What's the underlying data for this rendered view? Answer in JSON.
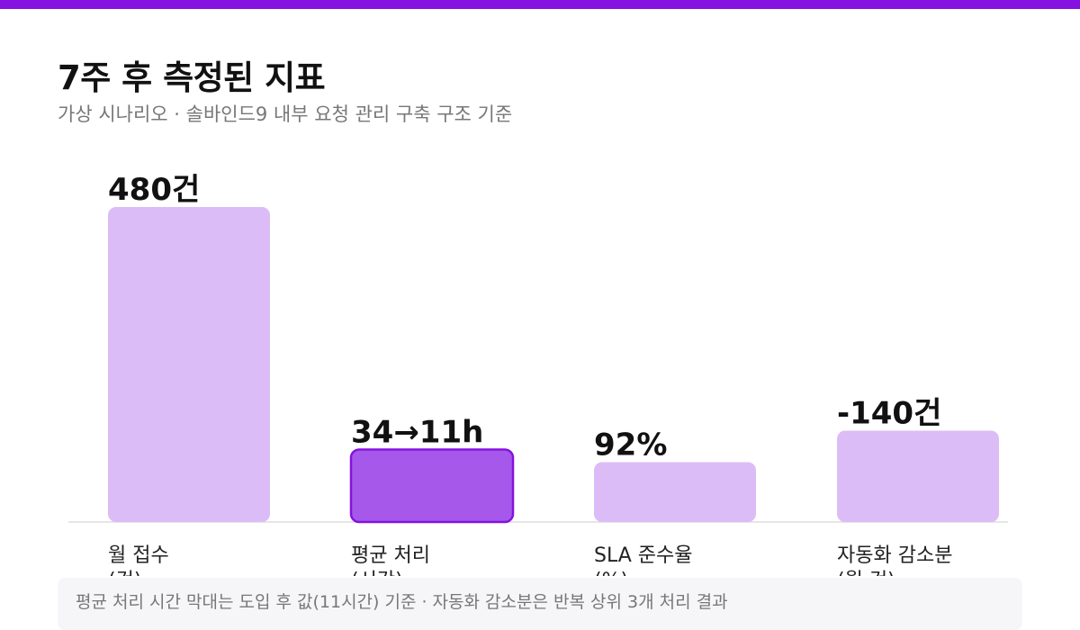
{
  "header": {
    "title": "7주 후 측정된 지표",
    "subtitle": "가상 시나리오 · 솔바인드9 내부 요청 관리 구축 구조 기준"
  },
  "footnote": "평균 처리 시간 막대는 도입 후 값(11시간) 기준 · 자동화 감소분은 반복 상위 3개 처리 결과",
  "colors": {
    "accent": "#8512e0",
    "bar": "#dcbcf6",
    "bar_highlight": "#a658ea",
    "bar_highlight_border": "#8512e0",
    "baseline": "#dddddd",
    "value_label": "#111111",
    "category_label": "#222222"
  },
  "chart_data": {
    "type": "bar",
    "title": "7주 후 측정된 지표",
    "subtitle": "가상 시나리오 · 솔바인드9 내부 요청 관리 구축 구조 기준",
    "categories": [
      "월 접수 (건)",
      "평균 처리 (시간)",
      "SLA 준수율 (%)",
      "자동화 감소분 (월 건)"
    ],
    "category_lines": [
      [
        "월 접수",
        "(건)"
      ],
      [
        "평균 처리",
        "(시간)"
      ],
      [
        "SLA 준수율",
        "(%)"
      ],
      [
        "자동화 감소분",
        "(월 건)"
      ]
    ],
    "relative_values": [
      1.0,
      0.23,
      0.19,
      0.29
    ],
    "value_labels": [
      "480건",
      "34→11h",
      "92%",
      "-140건"
    ],
    "highlight_index": 1,
    "grid": false,
    "legend": "none"
  }
}
